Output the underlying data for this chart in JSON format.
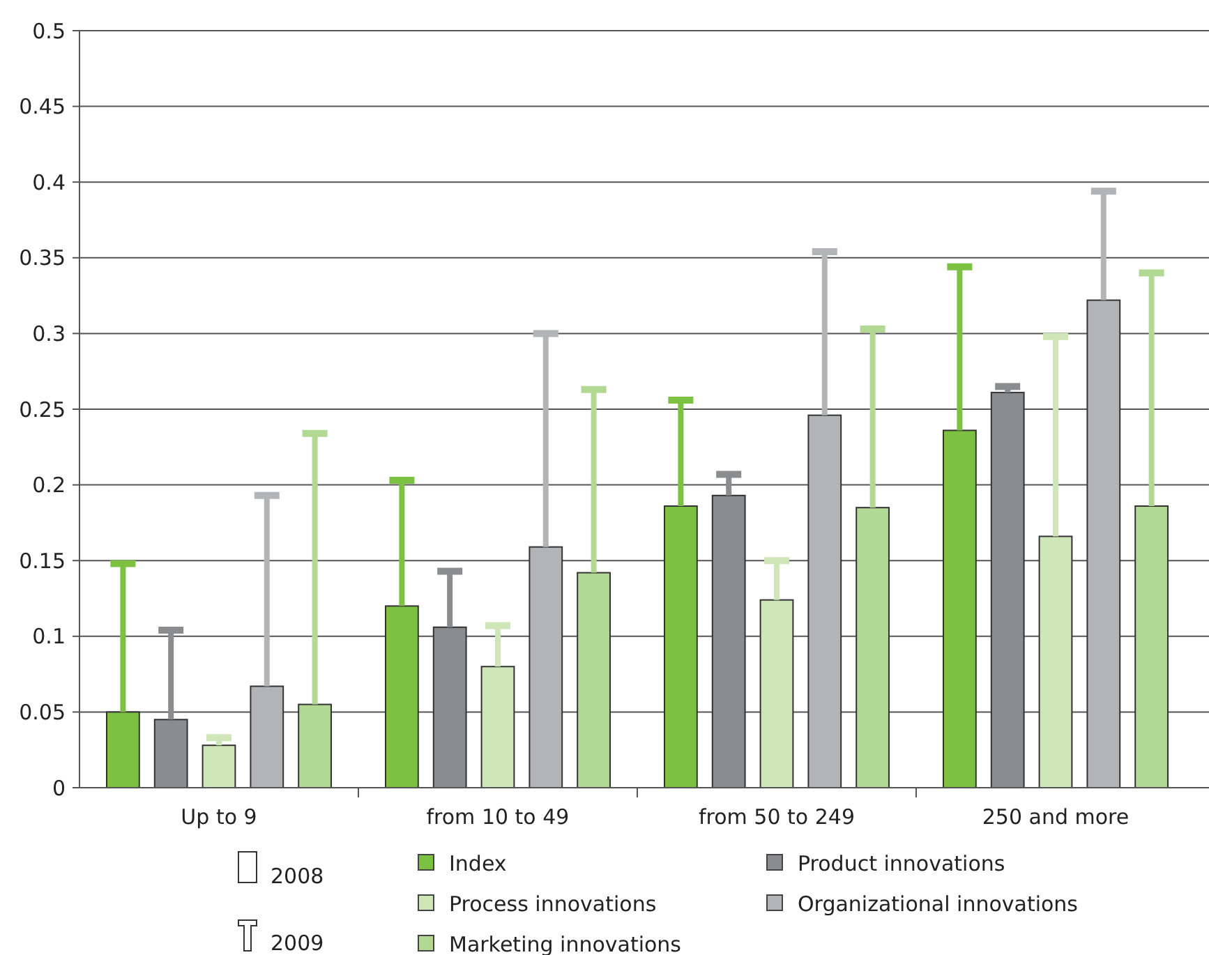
{
  "chart_data": {
    "type": "bar",
    "categories": [
      "Up to 9",
      "from 10 to 49",
      "from 50 to 249",
      "250 and more"
    ],
    "series": [
      {
        "name": "Index",
        "color": "#7dc142",
        "values": [
          0.05,
          0.12,
          0.186,
          0.236
        ],
        "errors": [
          [
            0.05,
            0.148
          ],
          [
            0.12,
            0.203
          ],
          [
            0.186,
            0.256
          ],
          [
            0.236,
            0.344
          ]
        ]
      },
      {
        "name": "Product innovations",
        "color": "#8a8c90",
        "values": [
          0.045,
          0.106,
          0.193,
          0.261
        ],
        "errors": [
          [
            0.045,
            0.104
          ],
          [
            0.106,
            0.143
          ],
          [
            0.193,
            0.207
          ],
          [
            0.261,
            0.265
          ]
        ]
      },
      {
        "name": "Process innovations",
        "color": "#cfe6b8",
        "values": [
          0.028,
          0.08,
          0.124,
          0.166
        ],
        "errors": [
          [
            0.028,
            0.033
          ],
          [
            0.08,
            0.107
          ],
          [
            0.124,
            0.15
          ],
          [
            0.166,
            0.298
          ]
        ]
      },
      {
        "name": "Organizational innovations",
        "color": "#b3b4b8",
        "values": [
          0.067,
          0.159,
          0.246,
          0.322
        ],
        "errors": [
          [
            0.067,
            0.193
          ],
          [
            0.159,
            0.3
          ],
          [
            0.246,
            0.354
          ],
          [
            0.322,
            0.394
          ]
        ]
      },
      {
        "name": "Marketing innovations",
        "color": "#b2d993",
        "values": [
          0.055,
          0.142,
          0.185,
          0.186
        ],
        "errors": [
          [
            0.055,
            0.234
          ],
          [
            0.142,
            0.263
          ],
          [
            0.185,
            0.303
          ],
          [
            0.186,
            0.34
          ]
        ]
      }
    ],
    "ylim": [
      0,
      0.5
    ],
    "yticks": [
      0,
      0.05,
      0.1,
      0.15,
      0.2,
      0.25,
      0.3,
      0.35,
      0.4,
      0.45,
      0.5
    ],
    "grid": "y",
    "legend": "bottom",
    "annotations": [
      "2008",
      "2009"
    ]
  }
}
